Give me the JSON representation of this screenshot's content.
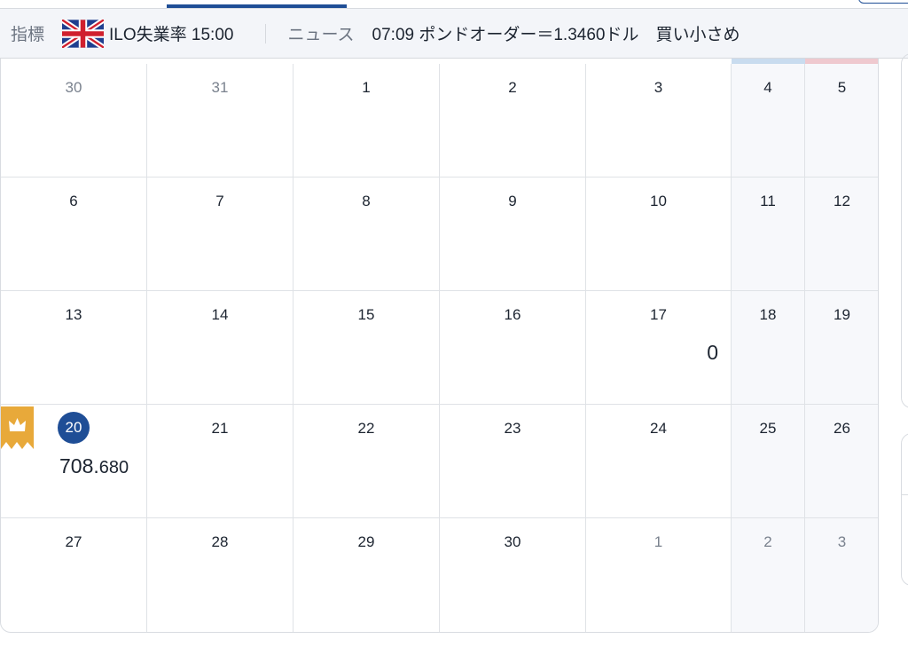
{
  "ticker": {
    "indicator_label": "指標",
    "indicator_flag": "uk-flag-icon",
    "indicator_text": "ILO失業率 15:00",
    "news_label": "ニュース",
    "news_text": "07:09 ポンドオーダー＝1.3460ドル　買い小さめ"
  },
  "calendar": {
    "weekend_colors": {
      "saturday": "#c9dcef",
      "sunday": "#efc9cf"
    },
    "today_color": "#1f4e96",
    "weeks": [
      [
        {
          "day": "30",
          "muted": true
        },
        {
          "day": "31",
          "muted": true
        },
        {
          "day": "1"
        },
        {
          "day": "2"
        },
        {
          "day": "3"
        },
        {
          "day": "4"
        },
        {
          "day": "5"
        }
      ],
      [
        {
          "day": "6"
        },
        {
          "day": "7"
        },
        {
          "day": "8"
        },
        {
          "day": "9"
        },
        {
          "day": "10"
        },
        {
          "day": "11"
        },
        {
          "day": "12"
        }
      ],
      [
        {
          "day": "13"
        },
        {
          "day": "14"
        },
        {
          "day": "15"
        },
        {
          "day": "16"
        },
        {
          "day": "17",
          "value": "0"
        },
        {
          "day": "18"
        },
        {
          "day": "19"
        }
      ],
      [
        {
          "day": "20",
          "today": true,
          "best": true,
          "value_main": "708.",
          "value_small": "680"
        },
        {
          "day": "21"
        },
        {
          "day": "22"
        },
        {
          "day": "23"
        },
        {
          "day": "24"
        },
        {
          "day": "25"
        },
        {
          "day": "26"
        }
      ],
      [
        {
          "day": "27"
        },
        {
          "day": "28"
        },
        {
          "day": "29"
        },
        {
          "day": "30"
        },
        {
          "day": "1",
          "muted": true
        },
        {
          "day": "2",
          "muted": true
        },
        {
          "day": "3",
          "muted": true
        }
      ]
    ]
  }
}
